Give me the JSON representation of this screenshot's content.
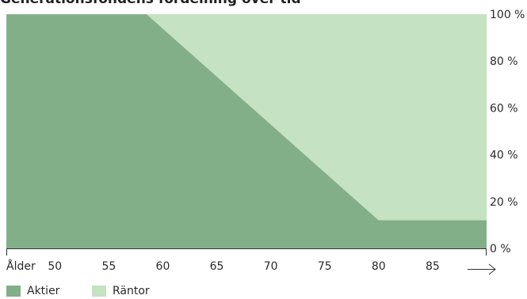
{
  "title": "Generationsfondens fördelning över tid",
  "chart_data": {
    "type": "area",
    "stacked": true,
    "xlabel": "Ålder",
    "x_ticks": [
      50,
      55,
      60,
      65,
      70,
      75,
      80,
      85
    ],
    "xlim": [
      45.5,
      90
    ],
    "ylim": [
      0,
      100
    ],
    "y_ticks": [
      0,
      20,
      40,
      60,
      80,
      100
    ],
    "y_tick_suffix": " %",
    "y_axis_position": "right",
    "x": [
      45.5,
      58.5,
      80,
      90
    ],
    "series": [
      {
        "name": "Aktier",
        "values": [
          100,
          100,
          12,
          12
        ],
        "color": "#82af87"
      },
      {
        "name": "Räntor",
        "values": [
          0,
          0,
          88,
          88
        ],
        "color": "#c5e2c2"
      }
    ],
    "legend": "bottom-left",
    "grid": false
  }
}
